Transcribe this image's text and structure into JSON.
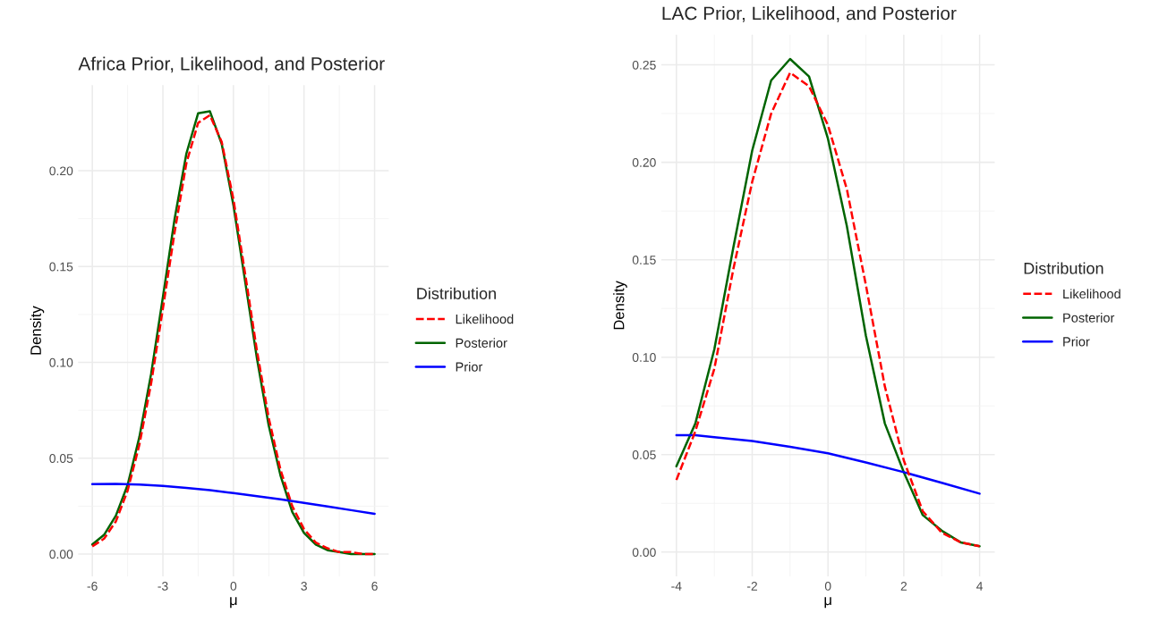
{
  "chart_data": [
    {
      "type": "line",
      "title": "Africa Prior, Likelihood, and Posterior",
      "xlabel": "μ",
      "ylabel": "Density",
      "legend_title": "Distribution",
      "legend": "right",
      "grid": true,
      "x": [
        -6,
        -5.5,
        -5,
        -4.5,
        -4,
        -3.5,
        -3,
        -2.5,
        -2,
        -1.5,
        -1,
        -0.5,
        0,
        0.5,
        1,
        1.5,
        2,
        2.5,
        3,
        3.5,
        4,
        4.5,
        5,
        5.5,
        6
      ],
      "xlim": [
        -6.6,
        6.6
      ],
      "xticks": [
        -6,
        -3,
        0,
        3,
        6
      ],
      "ylim": [
        -0.0117,
        0.2447
      ],
      "yticks": [
        {
          "value": 0,
          "label": "0.00"
        },
        {
          "value": 0.05,
          "label": "0.05"
        },
        {
          "value": 0.1,
          "label": "0.10"
        },
        {
          "value": 0.15,
          "label": "0.15"
        },
        {
          "value": 0.2,
          "label": "0.20"
        }
      ],
      "series": [
        {
          "name": "Likelihood",
          "color": "#ff0000",
          "line_style": "dashed",
          "values": [
            0.004,
            0.008,
            0.017,
            0.033,
            0.057,
            0.089,
            0.128,
            0.168,
            0.204,
            0.225,
            0.229,
            0.215,
            0.185,
            0.146,
            0.106,
            0.071,
            0.044,
            0.025,
            0.013,
            0.006,
            0.003,
            0.001,
            0.001,
            0.0,
            0.0
          ]
        },
        {
          "name": "Posterior",
          "color": "#006400",
          "line_style": "solid",
          "values": [
            0.005,
            0.01,
            0.02,
            0.036,
            0.061,
            0.094,
            0.134,
            0.175,
            0.209,
            0.23,
            0.231,
            0.214,
            0.182,
            0.142,
            0.102,
            0.067,
            0.041,
            0.022,
            0.011,
            0.005,
            0.002,
            0.001,
            0.0,
            0.0,
            0.0
          ]
        },
        {
          "name": "Prior",
          "color": "#0000ff",
          "line_style": "solid",
          "x": [
            -6,
            -5,
            -4,
            -3,
            -2,
            -1,
            0,
            1,
            2,
            3,
            4,
            5,
            6
          ],
          "values": [
            0.0365,
            0.0366,
            0.0362,
            0.0355,
            0.0345,
            0.0333,
            0.0318,
            0.0302,
            0.0285,
            0.0267,
            0.0248,
            0.0229,
            0.021
          ]
        }
      ]
    },
    {
      "type": "line",
      "title": "LAC Prior, Likelihood, and Posterior",
      "xlabel": "μ",
      "ylabel": "Density",
      "legend_title": "Distribution",
      "legend": "right",
      "grid": true,
      "x": [
        -4,
        -3.5,
        -3,
        -2.5,
        -2,
        -1.5,
        -1,
        -0.5,
        0,
        0.5,
        1,
        1.5,
        2,
        2.5,
        3,
        3.5,
        4
      ],
      "xlim": [
        -4.4,
        4.4
      ],
      "xticks": [
        -4,
        -2,
        0,
        2,
        4
      ],
      "ylim": [
        -0.0125,
        0.2655
      ],
      "yticks": [
        {
          "value": 0,
          "label": "0.00"
        },
        {
          "value": 0.05,
          "label": "0.05"
        },
        {
          "value": 0.1,
          "label": "0.10"
        },
        {
          "value": 0.15,
          "label": "0.15"
        },
        {
          "value": 0.2,
          "label": "0.20"
        },
        {
          "value": 0.25,
          "label": "0.25"
        }
      ],
      "series": [
        {
          "name": "Likelihood",
          "color": "#ff0000",
          "line_style": "dashed",
          "values": [
            0.037,
            0.062,
            0.094,
            0.145,
            0.19,
            0.225,
            0.246,
            0.239,
            0.219,
            0.186,
            0.137,
            0.085,
            0.047,
            0.021,
            0.01,
            0.005,
            0.003
          ]
        },
        {
          "name": "Posterior",
          "color": "#006400",
          "line_style": "solid",
          "values": [
            0.044,
            0.066,
            0.104,
            0.156,
            0.206,
            0.242,
            0.253,
            0.244,
            0.212,
            0.167,
            0.111,
            0.066,
            0.041,
            0.019,
            0.011,
            0.005,
            0.003
          ]
        },
        {
          "name": "Prior",
          "color": "#0000ff",
          "line_style": "solid",
          "x": [
            -4,
            -3.5,
            -3,
            -2,
            -1,
            0,
            1,
            2,
            3,
            4
          ],
          "values": [
            0.06,
            0.06,
            0.059,
            0.057,
            0.054,
            0.0507,
            0.046,
            0.041,
            0.0356,
            0.03
          ]
        }
      ]
    }
  ]
}
